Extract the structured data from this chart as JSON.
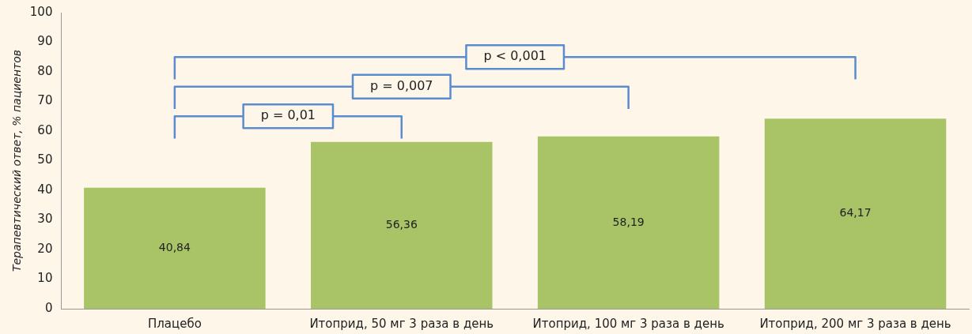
{
  "chart_data": {
    "type": "bar",
    "ylabel": "Терапевтический ответ, % пациентов",
    "categories": [
      "Плацебо",
      "Итоприд, 50 мг 3 раза в день",
      "Итоприд, 100 мг 3 раза в день",
      "Итоприд, 200 мг 3 раза в день"
    ],
    "values": [
      40.84,
      56.36,
      58.19,
      64.17
    ],
    "value_labels": [
      "40,84",
      "56,36",
      "58,19",
      "64,17"
    ],
    "color": "#a9c467",
    "ylim": [
      0,
      100
    ],
    "yticks": [
      0,
      10,
      20,
      30,
      40,
      50,
      60,
      70,
      80,
      90,
      100
    ],
    "grid": false,
    "legend": false,
    "annotations": [
      "p = 0,01",
      "p = 0,007",
      "p < 0,001"
    ]
  }
}
